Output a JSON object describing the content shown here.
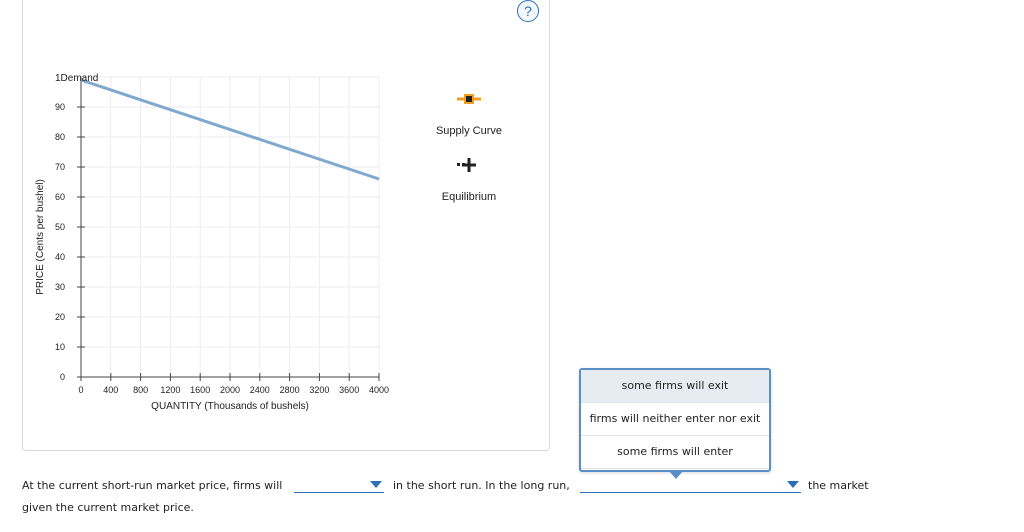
{
  "chart_data": {
    "type": "line",
    "xlabel": "QUANTITY (Thousands of bushels)",
    "ylabel": "PRICE (Cents per bushel)",
    "xlim": [
      0,
      4000
    ],
    "ylim": [
      0,
      100
    ],
    "x_ticks": [
      0,
      400,
      800,
      1200,
      1600,
      2000,
      2400,
      2800,
      3200,
      3600,
      4000
    ],
    "y_ticks": [
      0,
      10,
      20,
      30,
      40,
      50,
      60,
      70,
      80,
      90
    ],
    "grid": true,
    "series": [
      {
        "name": "1Demand",
        "color": "#7fa8d1",
        "x": [
          0,
          4000
        ],
        "y": [
          99,
          66
        ]
      }
    ]
  },
  "tools": {
    "supply_label": "Supply Curve",
    "equilibrium_label": "Equilibrium",
    "supply_icon": "orange-square-line-icon",
    "equilibrium_icon": "black-plus-icon"
  },
  "help": {
    "label": "?"
  },
  "question": {
    "part1": "At the current short-run market price, firms will",
    "part2": "in the short run. In the long run,",
    "part3": "the market",
    "part4": "given the current market price."
  },
  "dropdown": {
    "options": [
      "some firms will exit",
      "firms will neither enter nor exit",
      "some firms will enter"
    ]
  }
}
